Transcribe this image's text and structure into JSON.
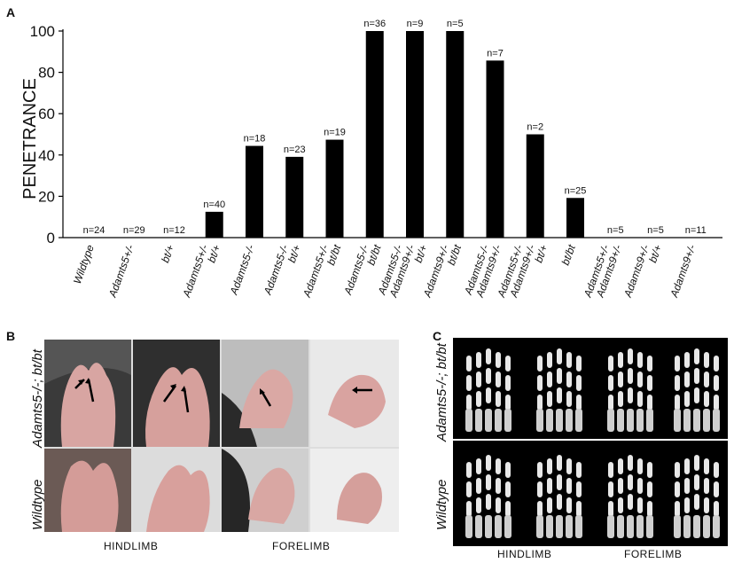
{
  "panels": {
    "a": "A",
    "b": "B",
    "c": "C"
  },
  "chart_data": {
    "type": "bar",
    "ylabel": "PENETRANCE",
    "xlabel": "",
    "ylim": [
      0,
      100
    ],
    "yticks": [
      0,
      20,
      40,
      60,
      80,
      100
    ],
    "grid": false,
    "bar_color": "#000000",
    "categories": [
      [
        "Wildtype"
      ],
      [
        "Adamts5+/-"
      ],
      [
        "bt/+"
      ],
      [
        "Adamts5+/-",
        "bt/+"
      ],
      [
        "Adamts5-/-"
      ],
      [
        "Adamts5-/-",
        "bt/+"
      ],
      [
        "Adamts5+/-",
        "bt/bt"
      ],
      [
        "Adamts5-/-",
        "bt/bt"
      ],
      [
        "Adamts5-/-",
        "Adamts9+/-",
        "bt/+"
      ],
      [
        "Adamts9+/-",
        "bt/bt"
      ],
      [
        "Adamts5-/-",
        "Adamts9+/-"
      ],
      [
        "Adamts5+/-",
        "Adamts9+/-",
        "bt/+"
      ],
      [
        "bt/bt"
      ],
      [
        "Adamts5+/-",
        "Adamts9+/-"
      ],
      [
        "Adamts9+/-",
        "bt/+"
      ],
      [
        "Adamts9+/-"
      ]
    ],
    "values": [
      0,
      0,
      0,
      12.5,
      44.4,
      39.1,
      47.4,
      100,
      100,
      100,
      85.7,
      50,
      19.2,
      0,
      0,
      0
    ],
    "data_labels": [
      "n=24",
      "n=29",
      "n=12",
      "n=40",
      "n=18",
      "n=23",
      "n=19",
      "n=36",
      "n=9",
      "n=5",
      "n=7",
      "n=2",
      "n=25",
      "n=5",
      "n=5",
      "n=11"
    ]
  },
  "panel_b": {
    "row_labels": [
      "Adamts5-/-; bt/bt",
      "Wildtype"
    ],
    "column_labels": [
      "HINDLIMB",
      "FORELIMB"
    ]
  },
  "panel_c": {
    "row_labels": [
      "Adamts5-/-; bt/bt",
      "Wildtype"
    ],
    "column_labels": [
      "HINDLIMB",
      "FORELIMB"
    ]
  },
  "colors": {
    "bar": "#000000",
    "paw_skin": "#d9a3a0",
    "fur_dark": "#2b2b2b",
    "bone": "#e8e8e8"
  }
}
